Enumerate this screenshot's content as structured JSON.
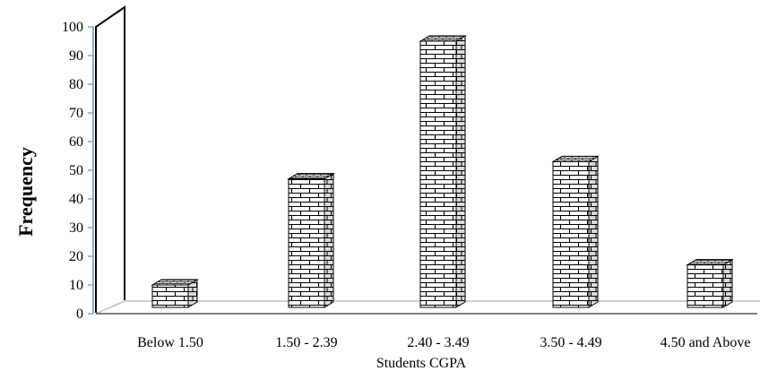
{
  "chart_data": {
    "type": "bar",
    "categories": [
      "Below 1.50",
      "1.50 - 2.39",
      "2.40 - 3.49",
      "3.50 - 4.49",
      "4.50 and Above"
    ],
    "values": [
      10,
      47,
      95,
      53,
      17
    ],
    "xlabel": "Students CGPA",
    "ylabel": "Frequency",
    "ylim": [
      0,
      100
    ],
    "yticks": [
      0,
      10,
      20,
      30,
      40,
      50,
      60,
      70,
      80,
      90,
      100
    ],
    "grid": false,
    "legend": "none",
    "style": "3D bars with brick pattern fill",
    "colors": {
      "axis_line": "#5b9bd5",
      "bar_outline": "#000000",
      "bar_fill": "#ffffff",
      "wall": "#000000"
    }
  }
}
